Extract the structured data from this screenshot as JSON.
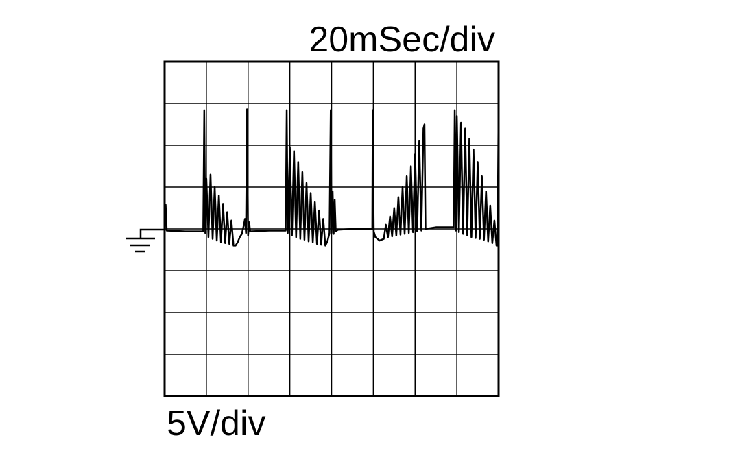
{
  "chart_data": {
    "type": "line",
    "title": "20mSec/div",
    "ylabel": "5V/div",
    "xlim": [
      0,
      160
    ],
    "ylim": [
      -20,
      20
    ],
    "xticks": [
      0,
      20,
      40,
      60,
      80,
      100,
      120,
      140,
      160
    ],
    "yticks": [
      -20,
      -15,
      -10,
      -5,
      0,
      5,
      10,
      15,
      20
    ],
    "grid": true,
    "color": "#000000",
    "x": [
      0,
      0.5,
      1,
      10,
      18.5,
      19,
      19.5,
      20,
      21,
      22,
      23,
      24,
      25,
      26,
      27,
      28,
      29,
      30,
      31,
      32,
      33,
      34,
      35,
      36,
      37,
      38,
      38.5,
      39,
      39.5,
      40,
      40.5,
      41,
      50,
      58,
      58.5,
      59,
      60,
      61,
      62,
      63,
      64,
      65,
      66,
      67,
      68,
      69,
      70,
      71,
      72,
      73,
      74,
      75,
      76,
      77,
      78,
      79,
      79.6,
      80,
      80.5,
      81,
      81.5,
      82,
      83,
      90,
      99.5,
      99.7,
      100.2,
      101,
      103,
      105,
      106,
      107,
      108,
      109,
      110,
      111,
      112,
      113,
      114,
      115,
      116,
      117,
      118,
      119,
      120,
      121,
      122,
      123,
      124,
      124.5,
      125,
      130,
      138.5,
      139,
      139.5,
      140,
      141,
      142,
      143,
      144,
      145,
      146,
      147,
      148,
      149,
      150,
      151,
      152,
      153,
      154,
      155,
      156,
      157,
      158,
      159,
      159.5,
      160
    ],
    "values": [
      0,
      2.9,
      -0.2,
      -0.3,
      -0.3,
      14.2,
      -0.5,
      6.0,
      -1,
      6.5,
      -1.2,
      5,
      -1.4,
      4,
      -1.6,
      3,
      -1.7,
      2,
      -1.8,
      1,
      -2,
      -2,
      -1.6,
      -1,
      -0.6,
      0.5,
      1.2,
      -0.5,
      14.3,
      -0.8,
      0.8,
      -0.3,
      -0.2,
      -0.2,
      14.2,
      -0.5,
      9.8,
      -0.8,
      9.3,
      -1,
      8,
      -1.2,
      6.8,
      -1.3,
      5.5,
      -1.5,
      4.3,
      -1.6,
      3.2,
      -1.8,
      2.2,
      -1.9,
      1.2,
      -2,
      -1.5,
      -0.5,
      14.2,
      -0.5,
      4.5,
      -0.6,
      3.5,
      -0.3,
      -0.1,
      0,
      0,
      14.2,
      -0.3,
      -1,
      -1.4,
      -1.2,
      0.5,
      -1,
      1.5,
      -0.9,
      2.5,
      -0.8,
      3.8,
      -0.7,
      5,
      -0.6,
      6.3,
      -0.5,
      7.5,
      -0.4,
      9,
      -0.3,
      10.5,
      -0.2,
      12,
      12.5,
      0,
      0.2,
      0.2,
      14.2,
      -0.2,
      13.5,
      -0.4,
      12.7,
      -0.6,
      12,
      -0.8,
      10.8,
      -1,
      9.5,
      -1.1,
      8,
      -1.2,
      6.3,
      -1.3,
      4.5,
      -1.5,
      2.8,
      -1.7,
      1,
      -2,
      -2,
      14.2
    ]
  }
}
